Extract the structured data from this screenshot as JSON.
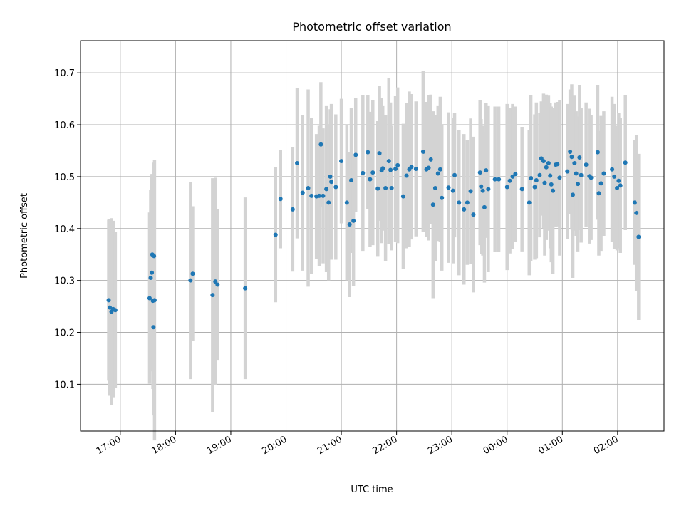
{
  "chart_data": {
    "type": "scatter",
    "title": "Photometric offset variation",
    "xlabel": "UTC time",
    "ylabel": "Photometric offset",
    "x_tick_labels": [
      "17:00",
      "18:00",
      "19:00",
      "20:00",
      "21:00",
      "22:00",
      "23:00",
      "00:00",
      "01:00",
      "02:00"
    ],
    "y_tick_labels": [
      "10.1",
      "10.2",
      "10.3",
      "10.4",
      "10.5",
      "10.6",
      "10.7"
    ],
    "xlim_hours": [
      16.28,
      26.84
    ],
    "ylim": [
      10.01,
      10.762
    ],
    "grid": true,
    "marker_color": "#1f77b4",
    "errorbar_color": "#d3d3d3",
    "points": [
      [
        16.79,
        10.262,
        0.155
      ],
      [
        16.81,
        10.248,
        0.17
      ],
      [
        16.84,
        10.24,
        0.18
      ],
      [
        16.87,
        10.245,
        0.17
      ],
      [
        16.91,
        10.243,
        0.15
      ],
      [
        17.53,
        10.266,
        0.165
      ],
      [
        17.55,
        10.305,
        0.17
      ],
      [
        17.57,
        10.315,
        0.19
      ],
      [
        17.58,
        10.35,
        0.155
      ],
      [
        17.59,
        10.261,
        0.17
      ],
      [
        17.6,
        10.21,
        0.17
      ],
      [
        17.61,
        10.347,
        0.18
      ],
      [
        17.62,
        10.262,
        0.27
      ],
      [
        18.27,
        10.3,
        0.19
      ],
      [
        18.31,
        10.313,
        0.13
      ],
      [
        18.67,
        10.272,
        0.225
      ],
      [
        18.72,
        10.298,
        0.2
      ],
      [
        18.76,
        10.292,
        0.145
      ],
      [
        19.26,
        10.285,
        0.175
      ],
      [
        19.81,
        10.388,
        0.13
      ],
      [
        19.9,
        10.457,
        0.095
      ],
      [
        20.12,
        10.437,
        0.12
      ],
      [
        20.2,
        10.526,
        0.145
      ],
      [
        20.3,
        10.469,
        0.15
      ],
      [
        20.4,
        10.478,
        0.19
      ],
      [
        20.46,
        10.463,
        0.15
      ],
      [
        20.55,
        10.462,
        0.12
      ],
      [
        20.6,
        10.463,
        0.135
      ],
      [
        20.63,
        10.562,
        0.12
      ],
      [
        20.67,
        10.463,
        0.13
      ],
      [
        20.73,
        10.476,
        0.16
      ],
      [
        20.77,
        10.45,
        0.15
      ],
      [
        20.8,
        10.5,
        0.13
      ],
      [
        20.82,
        10.49,
        0.15
      ],
      [
        20.9,
        10.48,
        0.14
      ],
      [
        21.0,
        10.53,
        0.12
      ],
      [
        21.1,
        10.45,
        0.15
      ],
      [
        21.15,
        10.408,
        0.14
      ],
      [
        21.18,
        10.493,
        0.14
      ],
      [
        21.22,
        10.415,
        0.125
      ],
      [
        21.26,
        10.542,
        0.11
      ],
      [
        21.39,
        10.507,
        0.15
      ],
      [
        21.48,
        10.547,
        0.11
      ],
      [
        21.52,
        10.495,
        0.13
      ],
      [
        21.57,
        10.508,
        0.14
      ],
      [
        21.66,
        10.477,
        0.13
      ],
      [
        21.69,
        10.545,
        0.13
      ],
      [
        21.73,
        10.512,
        0.14
      ],
      [
        21.75,
        10.516,
        0.12
      ],
      [
        21.8,
        10.478,
        0.14
      ],
      [
        21.86,
        10.53,
        0.16
      ],
      [
        21.89,
        10.513,
        0.13
      ],
      [
        21.91,
        10.478,
        0.12
      ],
      [
        21.98,
        10.515,
        0.14
      ],
      [
        22.02,
        10.522,
        0.15
      ],
      [
        22.12,
        10.462,
        0.14
      ],
      [
        22.18,
        10.502,
        0.14
      ],
      [
        22.23,
        10.514,
        0.15
      ],
      [
        22.27,
        10.519,
        0.14
      ],
      [
        22.35,
        10.515,
        0.13
      ],
      [
        22.48,
        10.548,
        0.155
      ],
      [
        22.54,
        10.514,
        0.13
      ],
      [
        22.58,
        10.517,
        0.14
      ],
      [
        22.62,
        10.533,
        0.125
      ],
      [
        22.66,
        10.446,
        0.18
      ],
      [
        22.7,
        10.478,
        0.14
      ],
      [
        22.75,
        10.506,
        0.13
      ],
      [
        22.79,
        10.514,
        0.14
      ],
      [
        22.82,
        10.459,
        0.14
      ],
      [
        22.94,
        10.479,
        0.145
      ],
      [
        23.02,
        10.473,
        0.14
      ],
      [
        23.05,
        10.503,
        0.12
      ],
      [
        23.13,
        10.45,
        0.14
      ],
      [
        23.22,
        10.437,
        0.145
      ],
      [
        23.28,
        10.45,
        0.12
      ],
      [
        23.34,
        10.472,
        0.14
      ],
      [
        23.39,
        10.427,
        0.15
      ],
      [
        23.51,
        10.508,
        0.14
      ],
      [
        23.53,
        10.481,
        0.13
      ],
      [
        23.56,
        10.473,
        0.125
      ],
      [
        23.59,
        10.441,
        0.145
      ],
      [
        23.62,
        10.512,
        0.13
      ],
      [
        23.66,
        10.476,
        0.16
      ],
      [
        23.78,
        10.495,
        0.14
      ],
      [
        23.85,
        10.495,
        0.14
      ],
      [
        24.0,
        10.48,
        0.16
      ],
      [
        24.05,
        10.492,
        0.14
      ],
      [
        24.1,
        10.5,
        0.14
      ],
      [
        24.15,
        10.505,
        0.13
      ],
      [
        24.27,
        10.476,
        0.12
      ],
      [
        24.4,
        10.45,
        0.14
      ],
      [
        24.43,
        10.497,
        0.16
      ],
      [
        24.5,
        10.48,
        0.14
      ],
      [
        24.53,
        10.493,
        0.15
      ],
      [
        24.59,
        10.503,
        0.12
      ],
      [
        24.62,
        10.535,
        0.11
      ],
      [
        24.66,
        10.53,
        0.13
      ],
      [
        24.68,
        10.488,
        0.14
      ],
      [
        24.71,
        10.518,
        0.14
      ],
      [
        24.75,
        10.526,
        0.13
      ],
      [
        24.78,
        10.502,
        0.14
      ],
      [
        24.8,
        10.485,
        0.15
      ],
      [
        24.83,
        10.473,
        0.16
      ],
      [
        24.88,
        10.523,
        0.12
      ],
      [
        24.91,
        10.524,
        0.12
      ],
      [
        24.95,
        10.498,
        0.15
      ],
      [
        25.09,
        10.51,
        0.13
      ],
      [
        25.14,
        10.548,
        0.12
      ],
      [
        25.17,
        10.538,
        0.14
      ],
      [
        25.19,
        10.465,
        0.16
      ],
      [
        25.22,
        10.526,
        0.13
      ],
      [
        25.25,
        10.506,
        0.12
      ],
      [
        25.28,
        10.486,
        0.13
      ],
      [
        25.31,
        10.537,
        0.14
      ],
      [
        25.34,
        10.503,
        0.13
      ],
      [
        25.43,
        10.523,
        0.12
      ],
      [
        25.49,
        10.501,
        0.13
      ],
      [
        25.52,
        10.498,
        0.12
      ],
      [
        25.64,
        10.547,
        0.13
      ],
      [
        25.66,
        10.468,
        0.12
      ],
      [
        25.7,
        10.487,
        0.13
      ],
      [
        25.75,
        10.506,
        0.12
      ],
      [
        25.9,
        10.514,
        0.14
      ],
      [
        25.94,
        10.5,
        0.14
      ],
      [
        25.99,
        10.478,
        0.12
      ],
      [
        26.02,
        10.492,
        0.13
      ],
      [
        26.05,
        10.483,
        0.13
      ],
      [
        26.14,
        10.527,
        0.13
      ],
      [
        26.31,
        10.45,
        0.12
      ],
      [
        26.34,
        10.43,
        0.15
      ],
      [
        26.38,
        10.384,
        0.16
      ]
    ]
  }
}
